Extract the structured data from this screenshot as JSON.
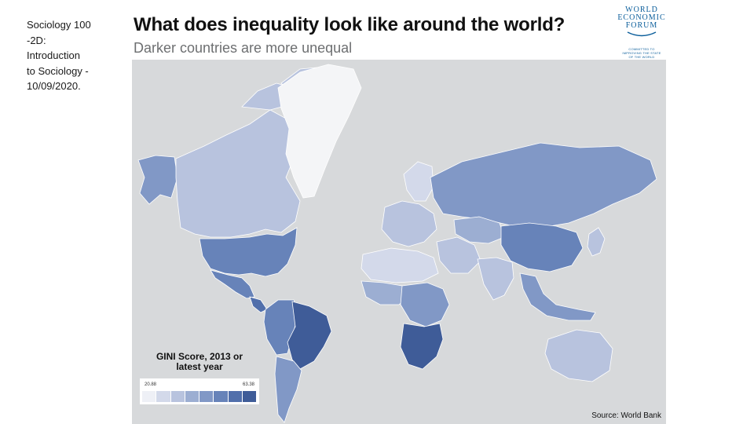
{
  "caption": {
    "lines": [
      "Sociology 100",
      "-2D:",
      "Introduction",
      "to Sociology -",
      "10/09/2020."
    ]
  },
  "slide": {
    "title": "What does inequality look like around the world?",
    "subtitle": "Darker countries are more unequal",
    "source": "Source: World Bank"
  },
  "logo": {
    "name_lines": [
      "WORLD",
      "ECONOMIC",
      "FORUM"
    ],
    "tagline_lines": [
      "COMMITTED TO",
      "IMPROVING THE STATE",
      "OF THE WORLD"
    ]
  },
  "legend": {
    "title_lines": [
      "GINI Score, 2013 or",
      "latest year"
    ],
    "min": "20.88",
    "max": "63.38",
    "colors": [
      "#eef0f6",
      "#d3d9ea",
      "#b8c3de",
      "#9caed2",
      "#8198c6",
      "#6783b9",
      "#516fab",
      "#3f5c98"
    ]
  },
  "map": {
    "ocean_color": "#d7d9db",
    "no_data_color": "#f4f5f7",
    "regions": [
      {
        "name": "greenland",
        "shade": 0
      },
      {
        "name": "canada",
        "shade": 2
      },
      {
        "name": "alaska",
        "shade": 4
      },
      {
        "name": "united-states",
        "shade": 5
      },
      {
        "name": "mexico",
        "shade": 5
      },
      {
        "name": "central-america",
        "shade": 6
      },
      {
        "name": "brazil",
        "shade": 7
      },
      {
        "name": "south-america-west",
        "shade": 5
      },
      {
        "name": "argentina-chile",
        "shade": 4
      },
      {
        "name": "western-europe",
        "shade": 2
      },
      {
        "name": "scandinavia",
        "shade": 1
      },
      {
        "name": "russia",
        "shade": 4
      },
      {
        "name": "north-africa",
        "shade": 1
      },
      {
        "name": "west-africa",
        "shade": 3
      },
      {
        "name": "central-africa",
        "shade": 4
      },
      {
        "name": "southern-africa",
        "shade": 7
      },
      {
        "name": "middle-east",
        "shade": 2
      },
      {
        "name": "central-asia",
        "shade": 3
      },
      {
        "name": "china",
        "shade": 5
      },
      {
        "name": "india",
        "shade": 2
      },
      {
        "name": "southeast-asia",
        "shade": 4
      },
      {
        "name": "japan",
        "shade": 2
      },
      {
        "name": "australia",
        "shade": 2
      }
    ]
  }
}
